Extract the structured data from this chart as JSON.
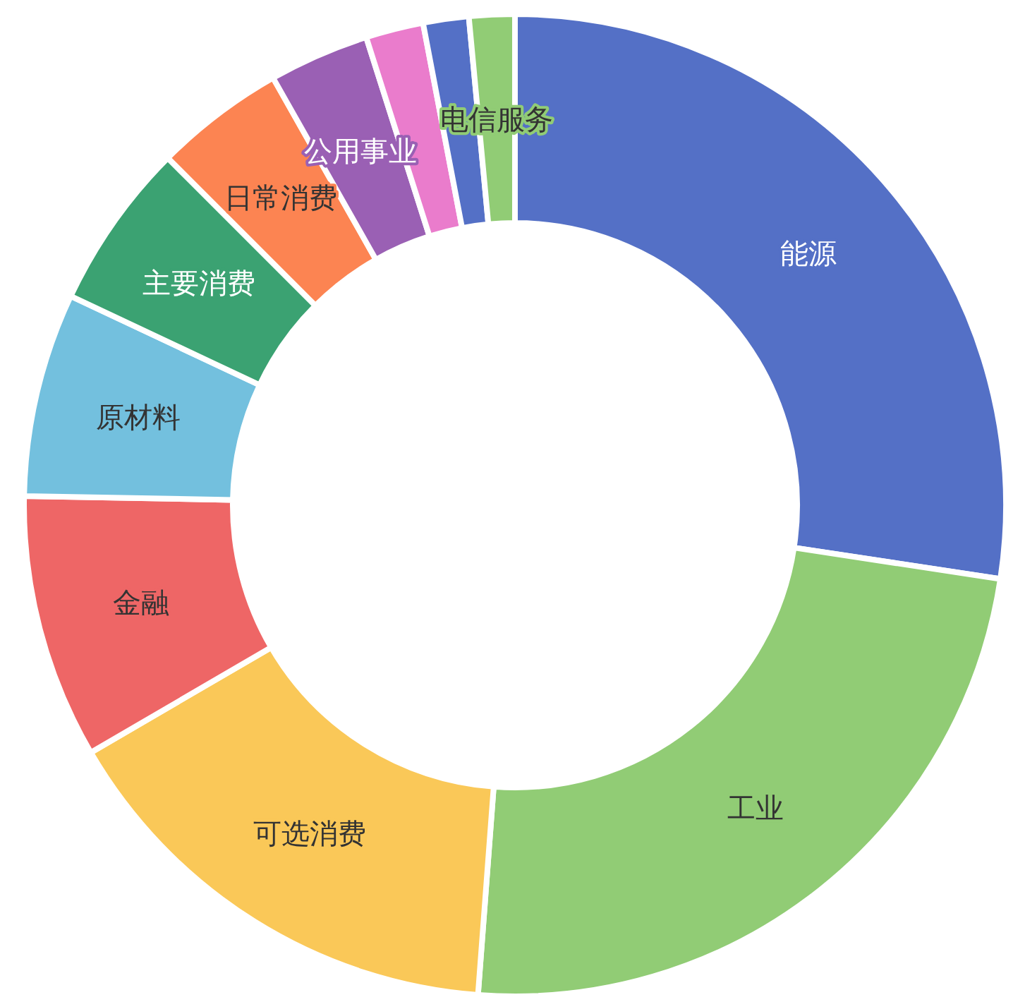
{
  "chart_data": {
    "type": "donut",
    "categories": [
      "能源",
      "工业",
      "可选消费",
      "金融",
      "原材料",
      "主要消费",
      "日常消费",
      "公用事业",
      null,
      null,
      "电信服务"
    ],
    "values": [
      27.4,
      23.8,
      15.4,
      8.7,
      6.7,
      5.5,
      4.3,
      3.3,
      1.9,
      1.5,
      1.5
    ],
    "colors": [
      "#5470c6",
      "#91cc75",
      "#fac858",
      "#ee6666",
      "#73c0de",
      "#3ba272",
      "#fc8452",
      "#9a60b4",
      "#ea7ccc",
      "#5470c6",
      "#91cc75"
    ]
  }
}
